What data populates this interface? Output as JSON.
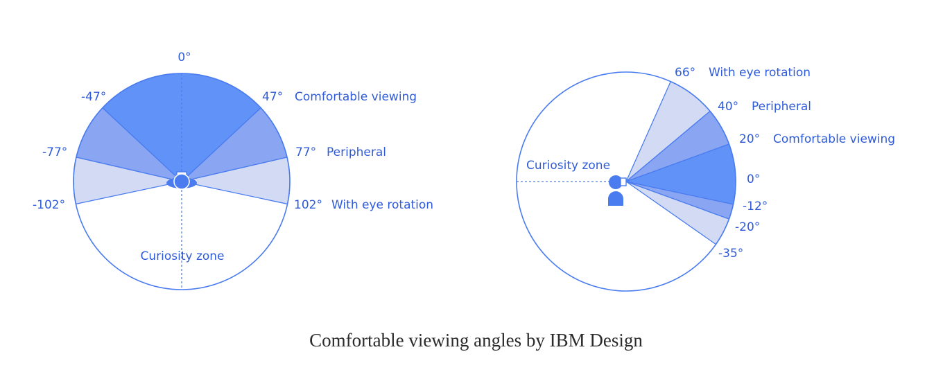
{
  "colors": {
    "line": "#4a7cf0",
    "dark_fill": "#6092f8",
    "mid_fill": "#8aa6f3",
    "light_fill": "#d3dbf4",
    "text": "#2f5bd8",
    "caption": "#2b2b2b"
  },
  "top_view": {
    "zero_label": "0°",
    "angles": {
      "comfortable": 47,
      "peripheral": 77,
      "eye_rotation": 102
    },
    "label_left_comfortable": "-47°",
    "label_left_peripheral": "-77°",
    "label_left_eye_rotation": "-102°",
    "label_right_comfortable": "47°",
    "label_right_peripheral": "77°",
    "label_right_eye_rotation": "102°",
    "zone_comfortable": "Comfortable viewing",
    "zone_peripheral": "Peripheral",
    "zone_eye_rotation": "With eye rotation",
    "zone_curiosity": "Curiosity zone"
  },
  "side_view": {
    "angles": {
      "up_eye_rotation": 66,
      "up_peripheral": 40,
      "up_comfortable": 20,
      "down_comfortable": -12,
      "down_peripheral": -20,
      "down_eye_rotation": -35
    },
    "label_up_eye_rotation": "66°",
    "label_up_peripheral": "40°",
    "label_up_comfortable": "20°",
    "label_zero": "0°",
    "label_down_comfortable": "-12°",
    "label_down_peripheral": "-20°",
    "label_down_eye_rotation": "-35°",
    "zone_eye_rotation": "With eye rotation",
    "zone_peripheral": "Peripheral",
    "zone_comfortable": "Comfortable viewing",
    "zone_curiosity": "Curiosity zone"
  },
  "caption": "Comfortable viewing angles by IBM Design"
}
